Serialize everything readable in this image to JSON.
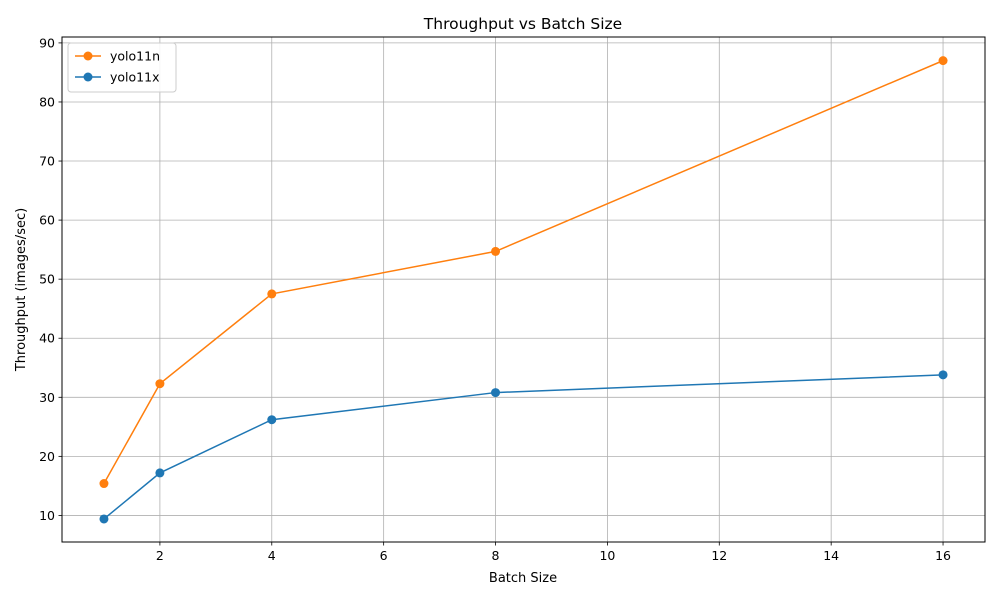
{
  "chart_data": {
    "type": "line",
    "title": "Throughput vs Batch Size",
    "xlabel": "Batch Size",
    "ylabel": "Throughput (images/sec)",
    "xlim": [
      0.25,
      16.75
    ],
    "ylim": [
      5.5,
      91
    ],
    "x_ticks": [
      2,
      4,
      6,
      8,
      10,
      12,
      14,
      16
    ],
    "y_ticks": [
      10,
      20,
      30,
      40,
      50,
      60,
      70,
      80,
      90
    ],
    "grid": true,
    "legend_position": "top-left",
    "x": [
      1,
      2,
      4,
      8,
      16
    ],
    "series": [
      {
        "name": "yolo11n",
        "color": "#ff7f0e",
        "marker": "circle",
        "values": [
          15.4,
          32.3,
          47.5,
          54.7,
          87.0
        ]
      },
      {
        "name": "yolo11x",
        "color": "#1f77b4",
        "marker": "circle",
        "values": [
          9.4,
          17.2,
          26.2,
          30.8,
          33.8
        ]
      }
    ]
  }
}
